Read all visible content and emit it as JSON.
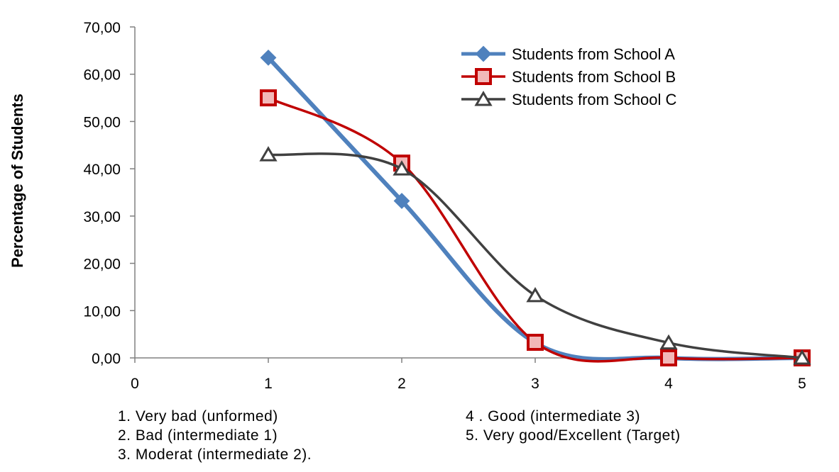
{
  "chart_data": {
    "type": "line",
    "ylabel": "Percentage of Students",
    "xlabel": "",
    "xlim": [
      0,
      5
    ],
    "ylim": [
      0,
      70
    ],
    "x_ticks": [
      "0",
      "1",
      "2",
      "3",
      "4",
      "5"
    ],
    "y_ticks": [
      "0,00",
      "10,00",
      "20,00",
      "30,00",
      "40,00",
      "50,00",
      "60,00",
      "70,00"
    ],
    "x": [
      1,
      2,
      3,
      4,
      5
    ],
    "series": [
      {
        "name": "Students from School A",
        "color": "#4f81bd",
        "marker": "diamond",
        "values": [
          63.5,
          33.2,
          3.2,
          0.0,
          0.0
        ]
      },
      {
        "name": "Students from School B",
        "color": "#c00000",
        "marker": "square",
        "values": [
          55.0,
          41.2,
          3.3,
          0.0,
          0.0
        ]
      },
      {
        "name": "Students from School C",
        "color": "#404040",
        "marker": "triangle",
        "values": [
          43.0,
          40.0,
          13.2,
          3.2,
          0.0
        ]
      }
    ],
    "legend_position": "top-right",
    "grid": false
  },
  "notes": {
    "left": [
      "1. Very bad (unformed)",
      "2. Bad (intermediate 1)",
      "3. Moderat (intermediate 2)."
    ],
    "right": [
      "4 .  Good (intermediate 3)",
      "5.  Very good/Excellent (Target)"
    ]
  }
}
